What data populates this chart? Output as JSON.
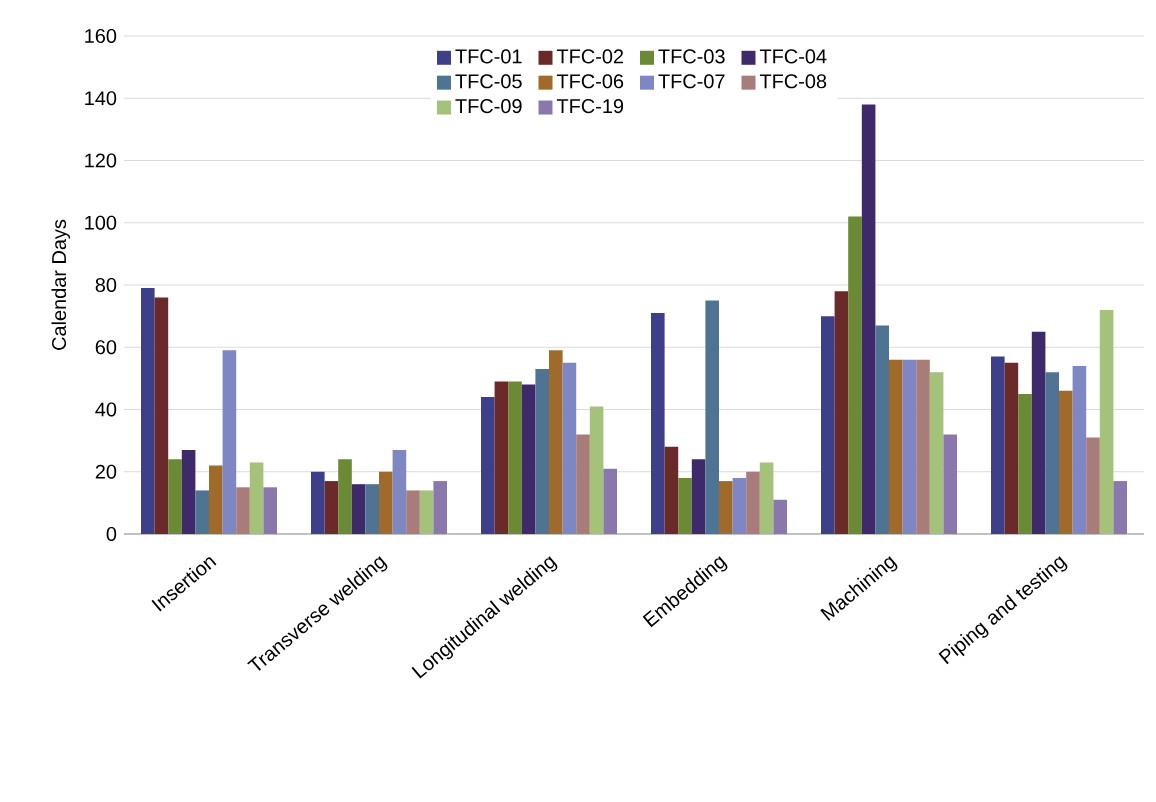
{
  "chart_data": {
    "type": "bar",
    "ylabel": "Calendar Days",
    "categories": [
      "Insertion",
      "Transverse welding",
      "Longitudinal welding",
      "Embedding",
      "Machining",
      "Piping and testing"
    ],
    "series": [
      {
        "name": "TFC-01",
        "color": "#3d3f8a",
        "values": [
          79,
          20,
          44,
          71,
          70,
          57
        ]
      },
      {
        "name": "TFC-02",
        "color": "#6b2a2a",
        "values": [
          76,
          17,
          49,
          28,
          78,
          55
        ]
      },
      {
        "name": "TFC-03",
        "color": "#6b8a35",
        "values": [
          24,
          24,
          49,
          18,
          102,
          45
        ]
      },
      {
        "name": "TFC-04",
        "color": "#3e2a6a",
        "values": [
          27,
          16,
          48,
          24,
          138,
          65
        ]
      },
      {
        "name": "TFC-05",
        "color": "#4f7393",
        "values": [
          14,
          16,
          53,
          75,
          67,
          52
        ]
      },
      {
        "name": "TFC-06",
        "color": "#a06a2a",
        "values": [
          22,
          20,
          59,
          17,
          56,
          46
        ]
      },
      {
        "name": "TFC-07",
        "color": "#7f86c4",
        "values": [
          59,
          27,
          55,
          18,
          56,
          54
        ]
      },
      {
        "name": "TFC-08",
        "color": "#a87c78",
        "values": [
          15,
          14,
          32,
          20,
          56,
          31
        ]
      },
      {
        "name": "TFC-09",
        "color": "#a4c27a",
        "values": [
          23,
          14,
          41,
          23,
          52,
          72
        ]
      },
      {
        "name": "TFC-19",
        "color": "#8a78ad",
        "values": [
          15,
          17,
          21,
          11,
          32,
          17
        ]
      }
    ],
    "ylim": [
      0,
      160
    ],
    "yticks": [
      0,
      20,
      40,
      60,
      80,
      100,
      120,
      140,
      160
    ],
    "grid": "y",
    "legend": "top"
  }
}
